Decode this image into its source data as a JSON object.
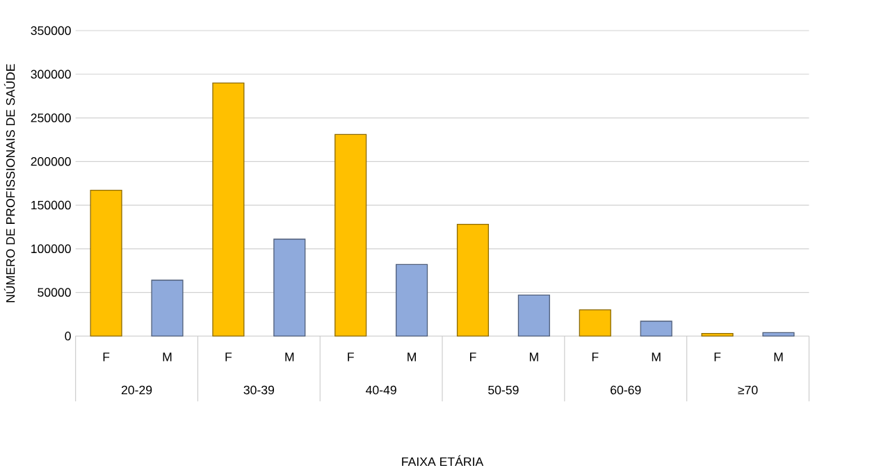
{
  "chart_data": {
    "type": "bar",
    "categories": [
      "20-29",
      "30-39",
      "40-49",
      "50-59",
      "60-69",
      "≥70"
    ],
    "xlabel": "FAIXA ETÁRIA",
    "ylabel": "NÚMERO DE PROFISSIONAIS DE SAÚDE",
    "ylim": [
      0,
      350000
    ],
    "yticks": [
      0,
      50000,
      100000,
      150000,
      200000,
      250000,
      300000,
      350000
    ],
    "grid": "y",
    "series": [
      {
        "name": "F",
        "color": "#ffc000",
        "values": [
          167000,
          290000,
          231000,
          128000,
          30000,
          3000
        ]
      },
      {
        "name": "M",
        "color": "#8faadc",
        "values": [
          64000,
          111000,
          82000,
          47000,
          17000,
          4000
        ]
      }
    ]
  }
}
